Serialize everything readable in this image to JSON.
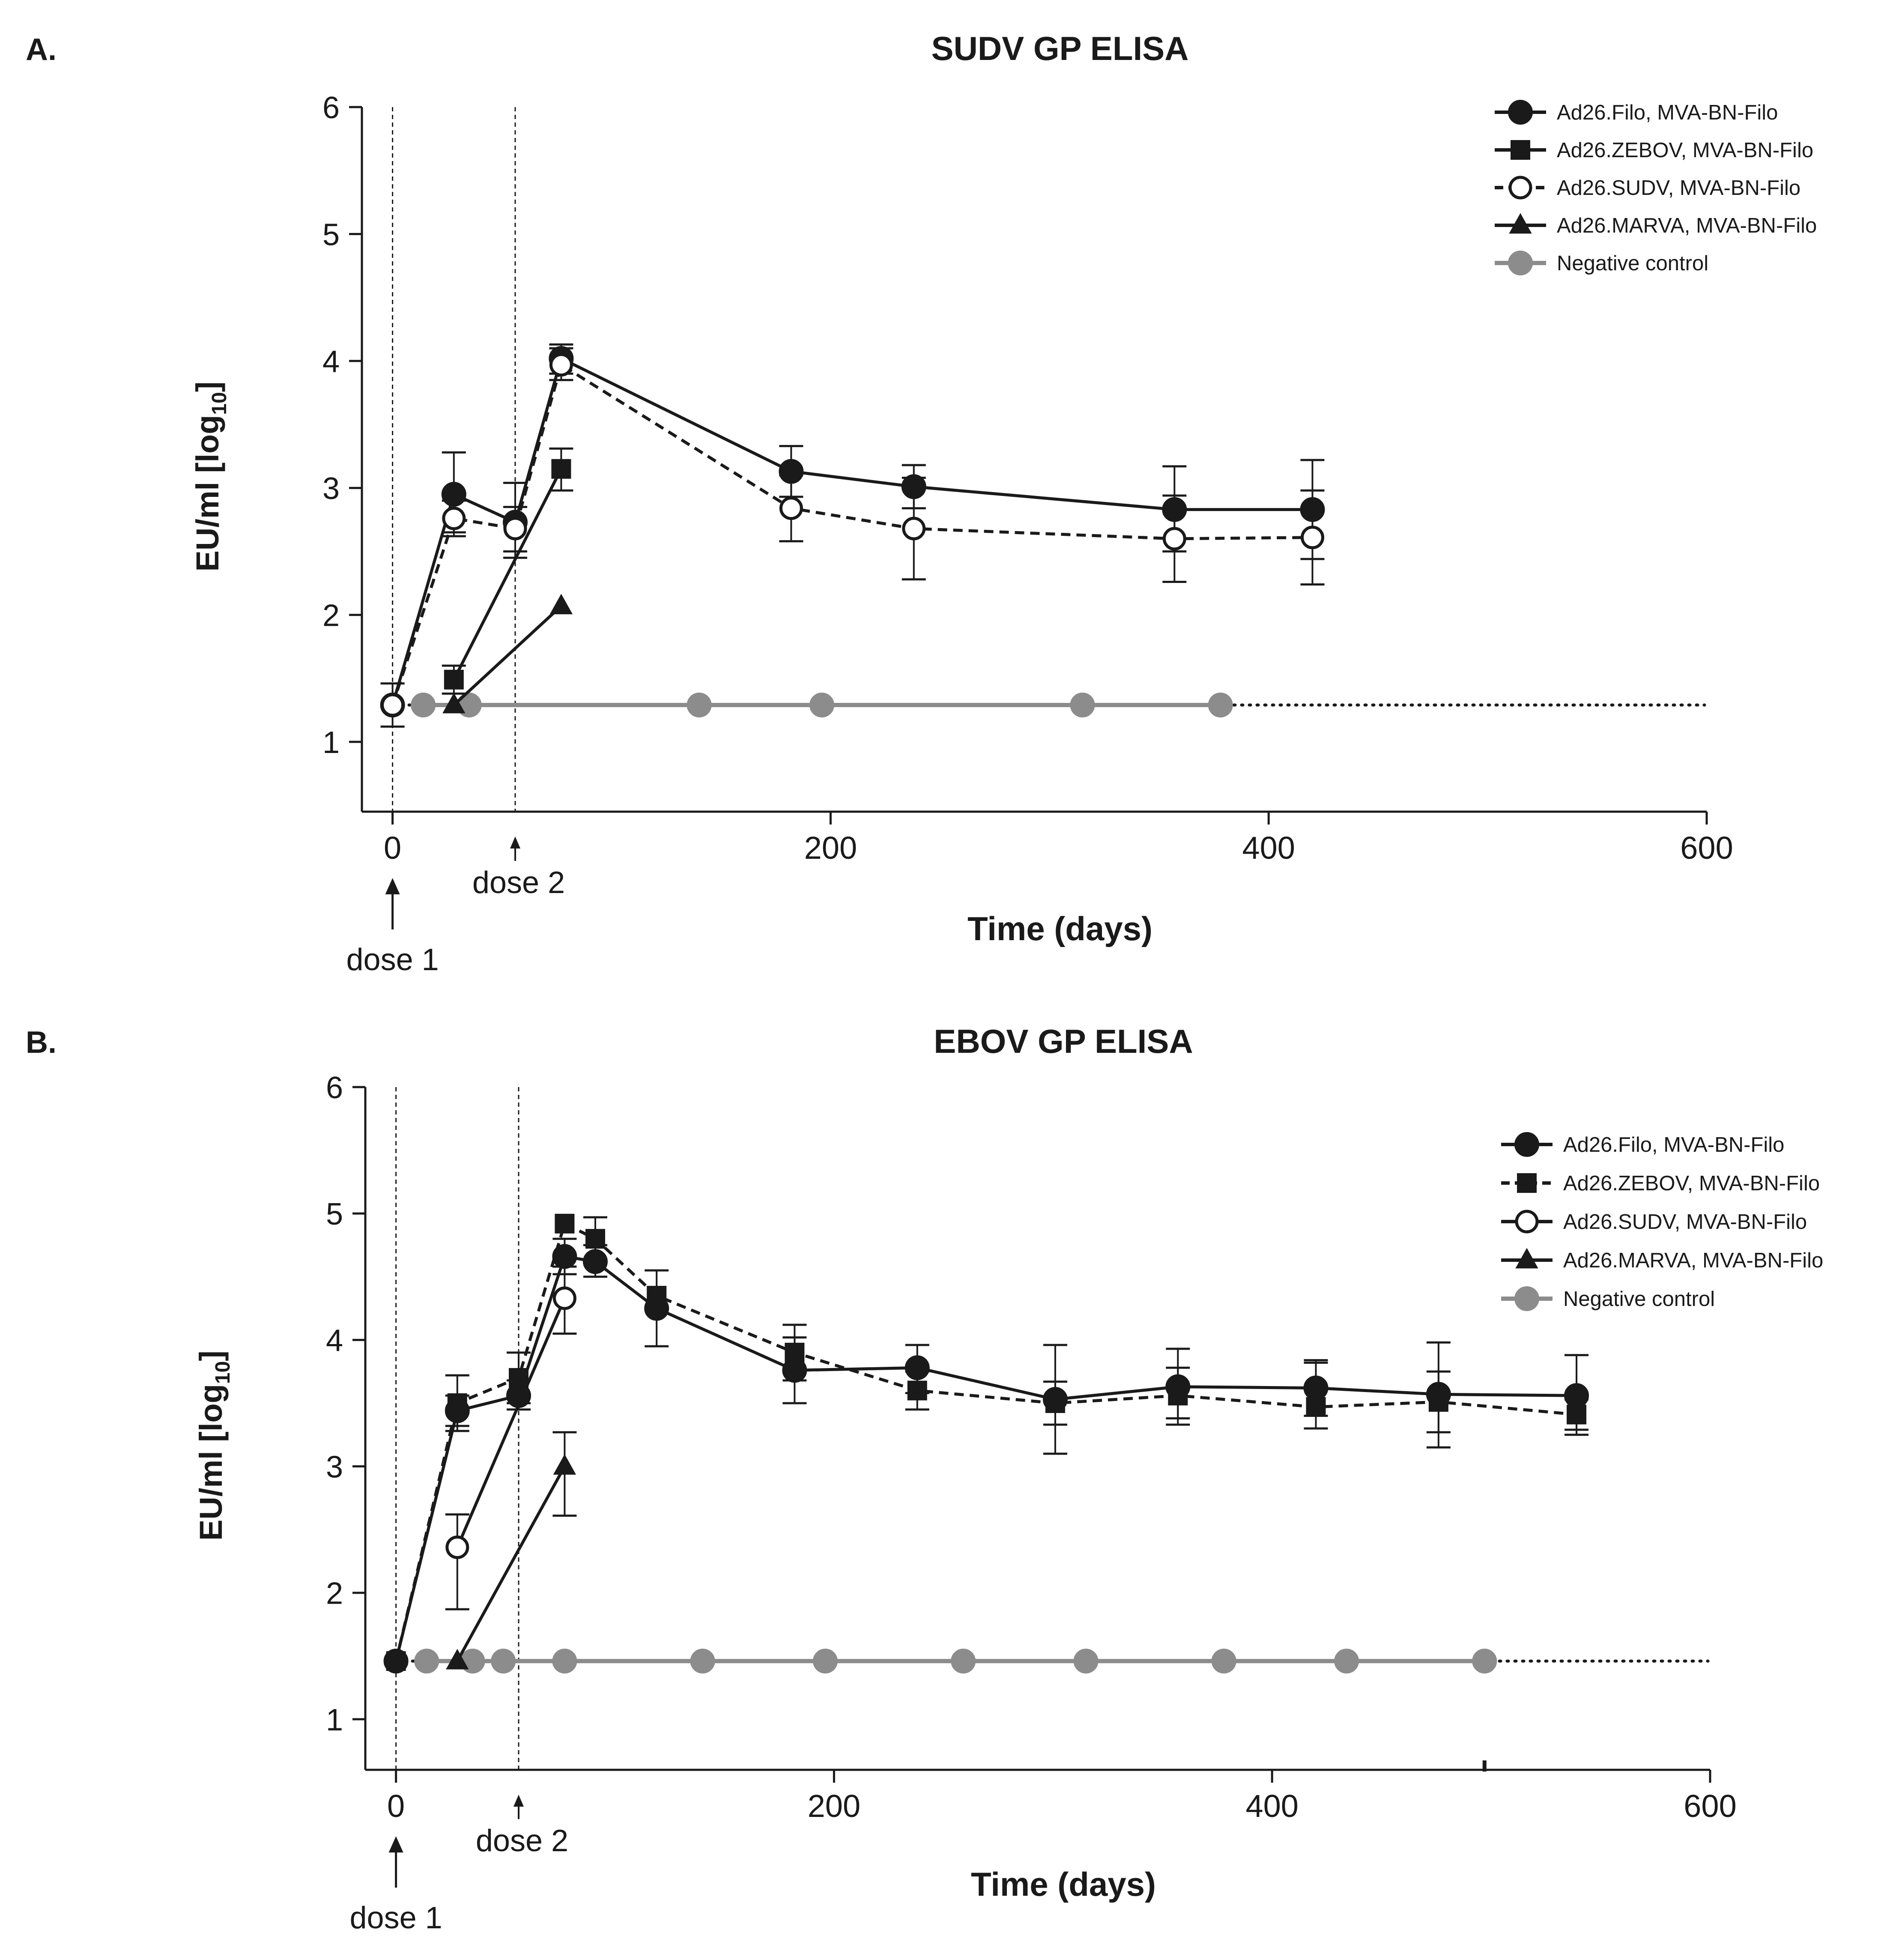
{
  "chart_data": [
    {
      "panel": "A.",
      "type": "line",
      "title": "SUDV GP ELISA",
      "xlabel": "Time (days)",
      "ylabel": "EU/ml [log10]",
      "ylabel_main": "EU/ml [log",
      "ylabel_sub": "10",
      "ylabel_end": "]",
      "xlim": [
        -14,
        600
      ],
      "ylim": [
        0.45,
        6
      ],
      "xticks": [
        0,
        200,
        400,
        600
      ],
      "yticks": [
        1,
        2,
        3,
        4,
        5,
        6
      ],
      "baseline_y": 1.29,
      "dose_lines": [
        0,
        56
      ],
      "annotations": [
        {
          "text": "dose 1",
          "x": 0
        },
        {
          "text": "dose 2",
          "x": 56
        }
      ],
      "legend_position": "top-right",
      "series": [
        {
          "name": "Ad26.Filo, MVA-BN-Filo",
          "marker": "circle-filled",
          "dash": "solid",
          "color": "#1a1a1a",
          "points": [
            {
              "x": 0,
              "y": 1.29,
              "lo": 1.12,
              "hi": 1.46
            },
            {
              "x": 28,
              "y": 2.95,
              "lo": 2.62,
              "hi": 3.28
            },
            {
              "x": 56,
              "y": 2.73,
              "lo": 2.45,
              "hi": 3.04
            },
            {
              "x": 77,
              "y": 4.02,
              "lo": 3.9,
              "hi": 4.13
            },
            {
              "x": 182,
              "y": 3.13,
              "lo": 2.93,
              "hi": 3.33
            },
            {
              "x": 238,
              "y": 3.01,
              "lo": 2.84,
              "hi": 3.18
            },
            {
              "x": 357,
              "y": 2.83,
              "lo": 2.5,
              "hi": 3.17
            },
            {
              "x": 420,
              "y": 2.83,
              "lo": 2.44,
              "hi": 3.22
            }
          ]
        },
        {
          "name": "Ad26.ZEBOV, MVA-BN-Filo",
          "marker": "square-filled",
          "dash": "solid",
          "color": "#1a1a1a",
          "points": [
            {
              "x": 28,
              "y": 1.49,
              "lo": 1.38,
              "hi": 1.6
            },
            {
              "x": 77,
              "y": 3.15,
              "lo": 2.98,
              "hi": 3.31
            }
          ]
        },
        {
          "name": "Ad26.SUDV, MVA-BN-Filo",
          "marker": "circle-open",
          "dash": "dashed",
          "color": "#1a1a1a",
          "points": [
            {
              "x": 0,
              "y": 1.29
            },
            {
              "x": 28,
              "y": 2.76,
              "lo": 2.65,
              "hi": 2.9
            },
            {
              "x": 56,
              "y": 2.68,
              "lo": 2.5,
              "hi": 2.85
            },
            {
              "x": 77,
              "y": 3.97,
              "lo": 3.85,
              "hi": 4.1
            },
            {
              "x": 182,
              "y": 2.84,
              "lo": 2.58,
              "hi": 3.1
            },
            {
              "x": 238,
              "y": 2.68,
              "lo": 2.28,
              "hi": 3.08
            },
            {
              "x": 357,
              "y": 2.6,
              "lo": 2.26,
              "hi": 2.94
            },
            {
              "x": 420,
              "y": 2.61,
              "lo": 2.24,
              "hi": 2.98
            }
          ]
        },
        {
          "name": "Ad26.MARVA, MVA-BN-Filo",
          "marker": "triangle-filled",
          "dash": "solid",
          "color": "#1a1a1a",
          "points": [
            {
              "x": 28,
              "y": 1.29
            },
            {
              "x": 77,
              "y": 2.07
            }
          ]
        },
        {
          "name": "Negative control",
          "marker": "circle-filled",
          "dash": "solid",
          "color": "#8c8c8c",
          "points": [
            {
              "x": 14,
              "y": 1.29
            },
            {
              "x": 35,
              "y": 1.29
            },
            {
              "x": 140,
              "y": 1.29
            },
            {
              "x": 196,
              "y": 1.29
            },
            {
              "x": 315,
              "y": 1.29
            },
            {
              "x": 378,
              "y": 1.29
            }
          ]
        }
      ]
    },
    {
      "panel": "B.",
      "type": "line",
      "title": "EBOV GP ELISA",
      "xlabel": "Time (days)",
      "ylabel": "EU/ml [log10]",
      "ylabel_main": "EU/ml [log",
      "ylabel_sub": "10",
      "ylabel_end": "]",
      "xlim": [
        -14,
        600
      ],
      "ylim": [
        0.6,
        6
      ],
      "xticks": [
        0,
        200,
        400,
        600
      ],
      "yticks": [
        1,
        2,
        3,
        4,
        5,
        6
      ],
      "baseline_y": 1.46,
      "dose_lines": [
        0,
        56
      ],
      "annotations": [
        {
          "text": "dose 1",
          "x": 0
        },
        {
          "text": "dose 2",
          "x": 56
        }
      ],
      "legend_position": "top-right",
      "series": [
        {
          "name": "Ad26.Filo, MVA-BN-Filo",
          "marker": "circle-filled",
          "dash": "solid",
          "color": "#1a1a1a",
          "points": [
            {
              "x": 0,
              "y": 1.46
            },
            {
              "x": 28,
              "y": 3.44,
              "lo": 3.32,
              "hi": 3.56
            },
            {
              "x": 56,
              "y": 3.56,
              "lo": 3.45,
              "hi": 3.68
            },
            {
              "x": 77,
              "y": 4.66,
              "lo": 4.52,
              "hi": 4.8
            },
            {
              "x": 91,
              "y": 4.62,
              "lo": 4.5,
              "hi": 4.75
            },
            {
              "x": 119,
              "y": 4.25,
              "lo": 3.95,
              "hi": 4.55
            },
            {
              "x": 182,
              "y": 3.76,
              "lo": 3.5,
              "hi": 4.02
            },
            {
              "x": 238,
              "y": 3.78,
              "lo": 3.58,
              "hi": 3.96
            },
            {
              "x": 301,
              "y": 3.53,
              "lo": 3.1,
              "hi": 3.96
            },
            {
              "x": 357,
              "y": 3.63,
              "lo": 3.38,
              "hi": 3.93
            },
            {
              "x": 420,
              "y": 3.62,
              "lo": 3.4,
              "hi": 3.84
            },
            {
              "x": 476,
              "y": 3.57,
              "lo": 3.15,
              "hi": 3.98
            },
            {
              "x": 539,
              "y": 3.56,
              "lo": 3.25,
              "hi": 3.88
            }
          ]
        },
        {
          "name": "Ad26.ZEBOV, MVA-BN-Filo",
          "marker": "square-filled",
          "dash": "dashed",
          "color": "#1a1a1a",
          "points": [
            {
              "x": 0,
              "y": 1.46
            },
            {
              "x": 28,
              "y": 3.5,
              "lo": 3.28,
              "hi": 3.72
            },
            {
              "x": 56,
              "y": 3.7,
              "lo": 3.5,
              "hi": 3.9
            },
            {
              "x": 77,
              "y": 4.92
            },
            {
              "x": 91,
              "y": 4.8,
              "lo": 4.62,
              "hi": 4.97
            },
            {
              "x": 119,
              "y": 4.35
            },
            {
              "x": 182,
              "y": 3.9,
              "lo": 3.68,
              "hi": 4.12
            },
            {
              "x": 238,
              "y": 3.6,
              "lo": 3.45,
              "hi": 3.75
            },
            {
              "x": 301,
              "y": 3.5,
              "lo": 3.33,
              "hi": 3.67
            },
            {
              "x": 357,
              "y": 3.56,
              "lo": 3.33,
              "hi": 3.78
            },
            {
              "x": 420,
              "y": 3.47,
              "lo": 3.3,
              "hi": 3.82
            },
            {
              "x": 476,
              "y": 3.51,
              "lo": 3.27,
              "hi": 3.75
            },
            {
              "x": 539,
              "y": 3.41,
              "lo": 3.29,
              "hi": 3.53
            }
          ]
        },
        {
          "name": "Ad26.SUDV, MVA-BN-Filo",
          "marker": "circle-open",
          "dash": "solid",
          "color": "#1a1a1a",
          "points": [
            {
              "x": 28,
              "y": 2.36,
              "lo": 1.87,
              "hi": 2.62
            },
            {
              "x": 77,
              "y": 4.33,
              "lo": 4.05,
              "hi": 4.58
            }
          ]
        },
        {
          "name": "Ad26.MARVA, MVA-BN-Filo",
          "marker": "triangle-filled",
          "dash": "solid",
          "color": "#1a1a1a",
          "points": [
            {
              "x": 28,
              "y": 1.46
            },
            {
              "x": 77,
              "y": 3.0,
              "lo": 2.61,
              "hi": 3.27
            }
          ]
        },
        {
          "name": "Negative control",
          "marker": "circle-filled",
          "dash": "solid",
          "color": "#8c8c8c",
          "points": [
            {
              "x": 14,
              "y": 1.46
            },
            {
              "x": 35,
              "y": 1.46
            },
            {
              "x": 49,
              "y": 1.46
            },
            {
              "x": 77,
              "y": 1.46
            },
            {
              "x": 140,
              "y": 1.46
            },
            {
              "x": 196,
              "y": 1.46
            },
            {
              "x": 259,
              "y": 1.46
            },
            {
              "x": 315,
              "y": 1.46
            },
            {
              "x": 378,
              "y": 1.46
            },
            {
              "x": 434,
              "y": 1.46
            },
            {
              "x": 497,
              "y": 1.46
            }
          ]
        }
      ]
    }
  ]
}
